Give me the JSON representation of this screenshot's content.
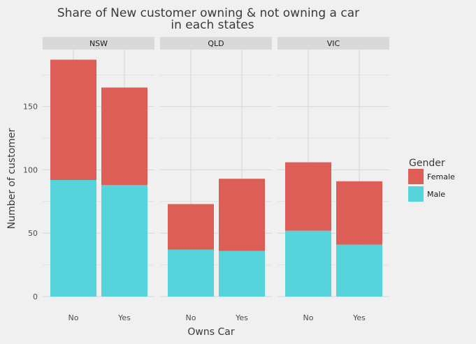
{
  "chart_data": {
    "type": "bar",
    "stacked": true,
    "faceted": true,
    "title_line1": "Share of New customer owning & not owning a car",
    "title_line2": "in each states",
    "xlabel": "Owns Car",
    "ylabel": "Number of customer",
    "ylim": [
      0,
      195
    ],
    "yticks": [
      0,
      50,
      100,
      150
    ],
    "categories": [
      "No",
      "Yes"
    ],
    "grid": true,
    "legend": {
      "title": "Gender",
      "position": "right",
      "entries": [
        {
          "name": "Female",
          "color": "#dd5e57"
        },
        {
          "name": "Male",
          "color": "#57d3db"
        }
      ]
    },
    "facets": [
      {
        "label": "NSW",
        "series": [
          {
            "name": "Male",
            "values": [
              92,
              88
            ]
          },
          {
            "name": "Female",
            "values": [
              95,
              77
            ]
          }
        ]
      },
      {
        "label": "QLD",
        "series": [
          {
            "name": "Male",
            "values": [
              37,
              36
            ]
          },
          {
            "name": "Female",
            "values": [
              36,
              57
            ]
          }
        ]
      },
      {
        "label": "VIC",
        "series": [
          {
            "name": "Male",
            "values": [
              52,
              41
            ]
          },
          {
            "name": "Female",
            "values": [
              54,
              50
            ]
          }
        ]
      }
    ]
  },
  "colors": {
    "background": "#f0f0f0",
    "grid": "#d9d9d9",
    "strip": "#d9d9d9"
  }
}
